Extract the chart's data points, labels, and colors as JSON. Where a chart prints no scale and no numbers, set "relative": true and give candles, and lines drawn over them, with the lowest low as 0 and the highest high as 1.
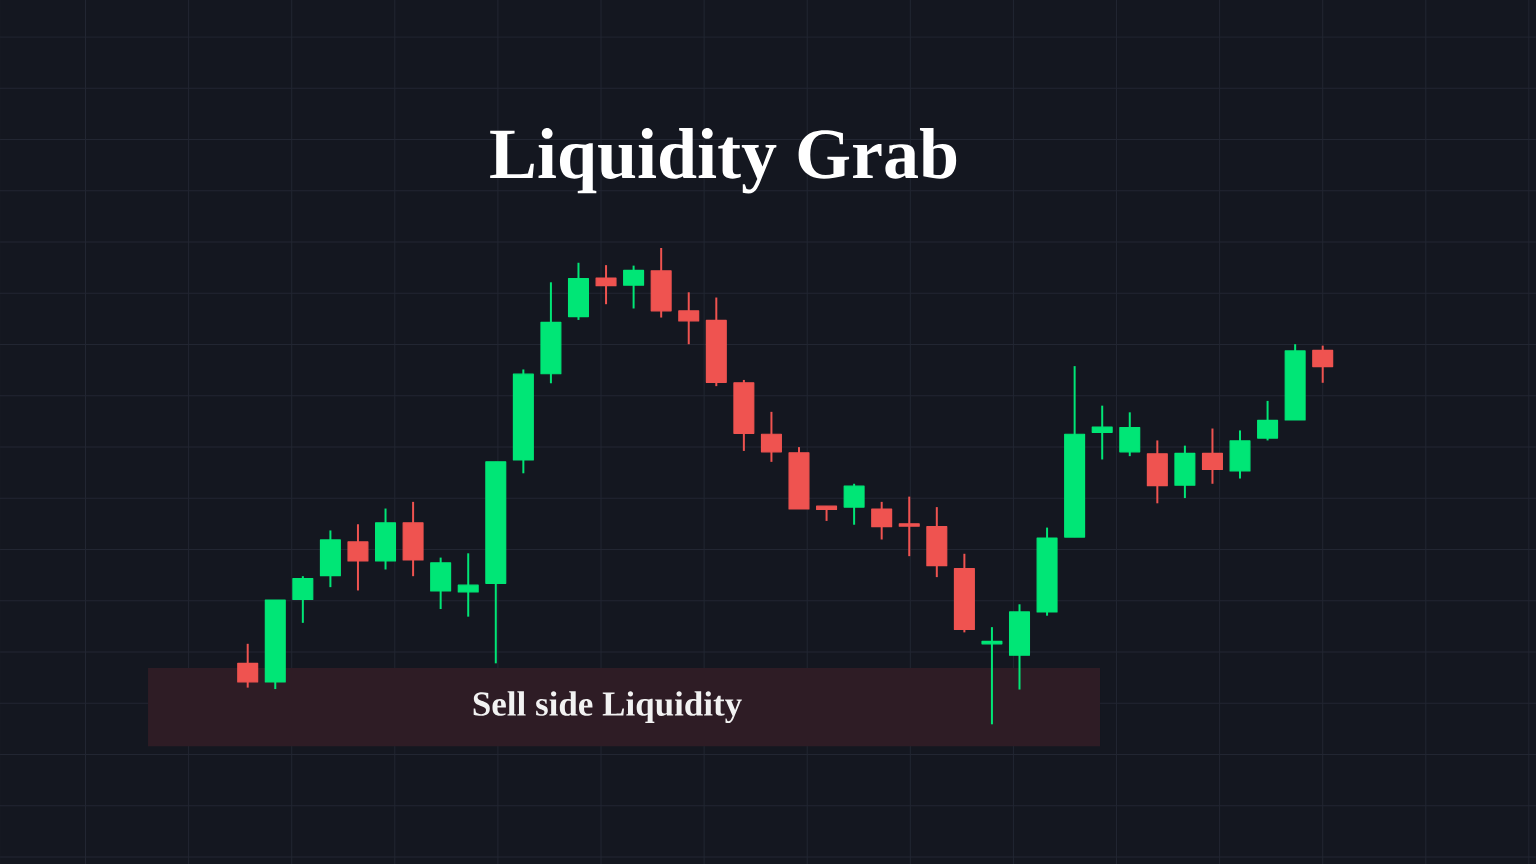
{
  "chart_data": {
    "type": "candlestick",
    "title": "Liquidity Grab",
    "relative": true,
    "grid": true,
    "categories": [
      null,
      null,
      null,
      null,
      null,
      null,
      null,
      null,
      null,
      null,
      null,
      null,
      null,
      null,
      null,
      null,
      null,
      null,
      null,
      null,
      null,
      null,
      null,
      null,
      null,
      null,
      null,
      null,
      null,
      null,
      null,
      null,
      null,
      null,
      null,
      null,
      null,
      null,
      null,
      null
    ],
    "ohlc": [
      [
        0.128,
        0.169,
        0.077,
        0.089
      ],
      [
        0.089,
        0.261,
        0.074,
        0.261
      ],
      [
        0.262,
        0.311,
        0.213,
        0.306
      ],
      [
        0.312,
        0.407,
        0.288,
        0.387
      ],
      [
        0.383,
        0.42,
        0.281,
        0.343
      ],
      [
        0.343,
        0.453,
        0.325,
        0.423
      ],
      [
        0.423,
        0.467,
        0.311,
        0.345
      ],
      [
        0.28,
        0.35,
        0.242,
        0.339
      ],
      [
        0.278,
        0.359,
        0.226,
        0.292
      ],
      [
        0.296,
        0.551,
        0.128,
        0.551
      ],
      [
        0.555,
        0.745,
        0.527,
        0.735
      ],
      [
        0.736,
        0.928,
        0.716,
        0.844
      ],
      [
        0.856,
        0.969,
        0.849,
        0.936
      ],
      [
        0.937,
        0.964,
        0.882,
        0.921
      ],
      [
        0.922,
        0.963,
        0.873,
        0.953
      ],
      [
        0.952,
        1,
        0.854,
        0.868
      ],
      [
        0.868,
        0.907,
        0.798,
        0.847
      ],
      [
        0.848,
        0.896,
        0.71,
        0.718
      ],
      [
        0.717,
        0.723,
        0.574,
        0.611
      ],
      [
        0.609,
        0.656,
        0.551,
        0.572
      ],
      [
        0.57,
        0.582,
        0.452,
        0.452
      ],
      [
        0.458,
        0.458,
        0.427,
        0.451
      ],
      [
        0.456,
        0.505,
        0.419,
        0.5
      ],
      [
        0.452,
        0.467,
        0.388,
        0.415
      ],
      [
        0.421,
        0.478,
        0.353,
        0.416
      ],
      [
        0.415,
        0.456,
        0.309,
        0.333
      ],
      [
        0.327,
        0.358,
        0.193,
        0.199
      ],
      [
        0.169,
        0.204,
        0,
        0.174
      ],
      [
        0.145,
        0.252,
        0.073,
        0.236
      ],
      [
        0.236,
        0.413,
        0.228,
        0.391
      ],
      [
        0.393,
        0.752,
        0.393,
        0.609
      ],
      [
        0.613,
        0.669,
        0.556,
        0.624
      ],
      [
        0.572,
        0.655,
        0.563,
        0.623
      ],
      [
        0.568,
        0.596,
        0.464,
        0.501
      ],
      [
        0.502,
        0.585,
        0.475,
        0.569
      ],
      [
        0.569,
        0.621,
        0.505,
        0.535
      ],
      [
        0.532,
        0.617,
        0.516,
        0.595
      ],
      [
        0.601,
        0.679,
        0.596,
        0.638
      ],
      [
        0.639,
        0.798,
        0.639,
        0.784
      ],
      [
        0.785,
        0.795,
        0.717,
        0.751
      ]
    ],
    "colors": [
      "#ef5350",
      "#00e676",
      "#00e676",
      "#00e676",
      "#ef5350",
      "#00e676",
      "#ef5350",
      "#00e676",
      "#00e676",
      "#00e676",
      "#00e676",
      "#00e676",
      "#00e676",
      "#ef5350",
      "#00e676",
      "#ef5350",
      "#ef5350",
      "#ef5350",
      "#ef5350",
      "#ef5350",
      "#ef5350",
      "#ef5350",
      "#00e676",
      "#ef5350",
      "#ef5350",
      "#ef5350",
      "#ef5350",
      "#00e676",
      "#00e676",
      "#00e676",
      "#00e676",
      "#00e676",
      "#00e676",
      "#ef5350",
      "#00e676",
      "#ef5350",
      "#00e676",
      "#00e676",
      "#00e676",
      "#ef5350"
    ],
    "bands": [
      {
        "axis": "y",
        "from": -0.046,
        "to": 0.118,
        "label": "Sell side Liquidity",
        "color": "#2e1c25"
      }
    ]
  }
}
